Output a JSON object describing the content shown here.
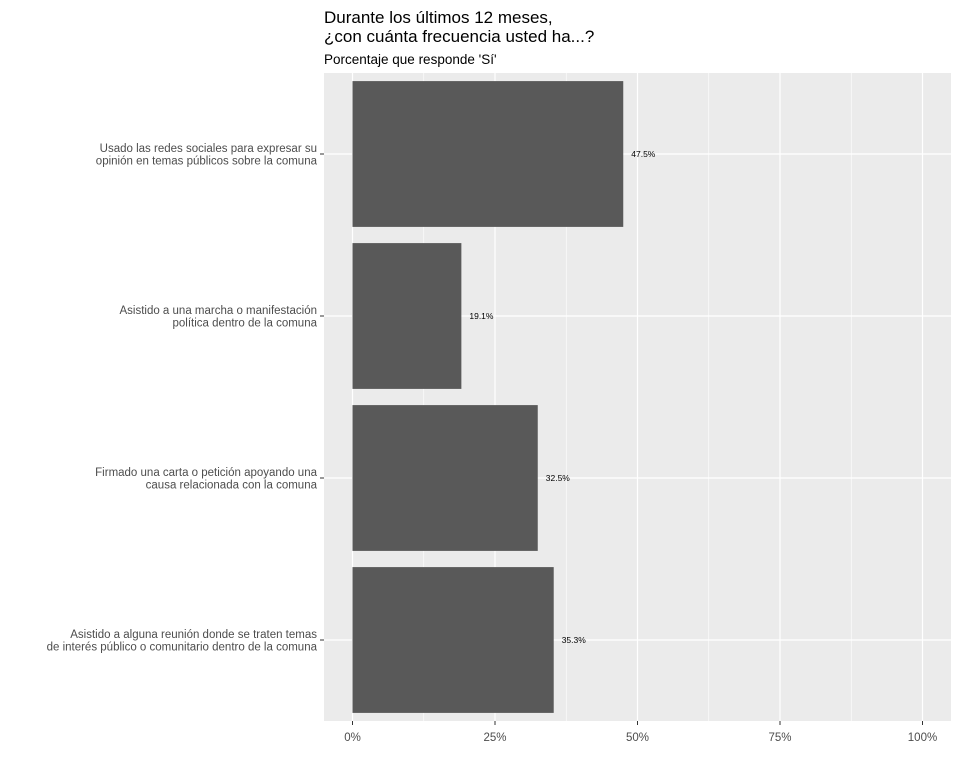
{
  "chart_data": {
    "type": "bar",
    "orientation": "horizontal",
    "title_lines": [
      "Durante los últimos 12 meses,",
      "¿con cuánta frecuencia usted ha...?"
    ],
    "subtitle": "Porcentaje que responde 'Sí'",
    "categories": [
      [
        "Usado las redes sociales para expresar su",
        "opinión en temas públicos sobre la comuna"
      ],
      [
        "Asistido a una marcha o manifestación",
        "política dentro de la comuna"
      ],
      [
        "Firmado una carta o petición apoyando una",
        "causa relacionada con la comuna"
      ],
      [
        "Asistido a alguna reunión donde se traten temas",
        "de interés público o comunitario dentro de la comuna"
      ]
    ],
    "values": [
      47.5,
      19.1,
      32.5,
      35.3
    ],
    "data_labels": [
      "47.5%",
      "19.1%",
      "32.5%",
      "35.3%"
    ],
    "x_ticks": [
      0,
      25,
      50,
      75,
      100
    ],
    "x_tick_labels": [
      "0%",
      "25%",
      "50%",
      "75%",
      "100%"
    ],
    "xlim": [
      -5,
      105
    ],
    "xlabel": "",
    "ylabel": "",
    "grid": true,
    "legend": "none",
    "colors": {
      "bar": "#595959",
      "panel": "#ebebeb",
      "grid": "#ffffff",
      "axis_text": "#4d4d4d",
      "ticks": "#333333"
    }
  }
}
